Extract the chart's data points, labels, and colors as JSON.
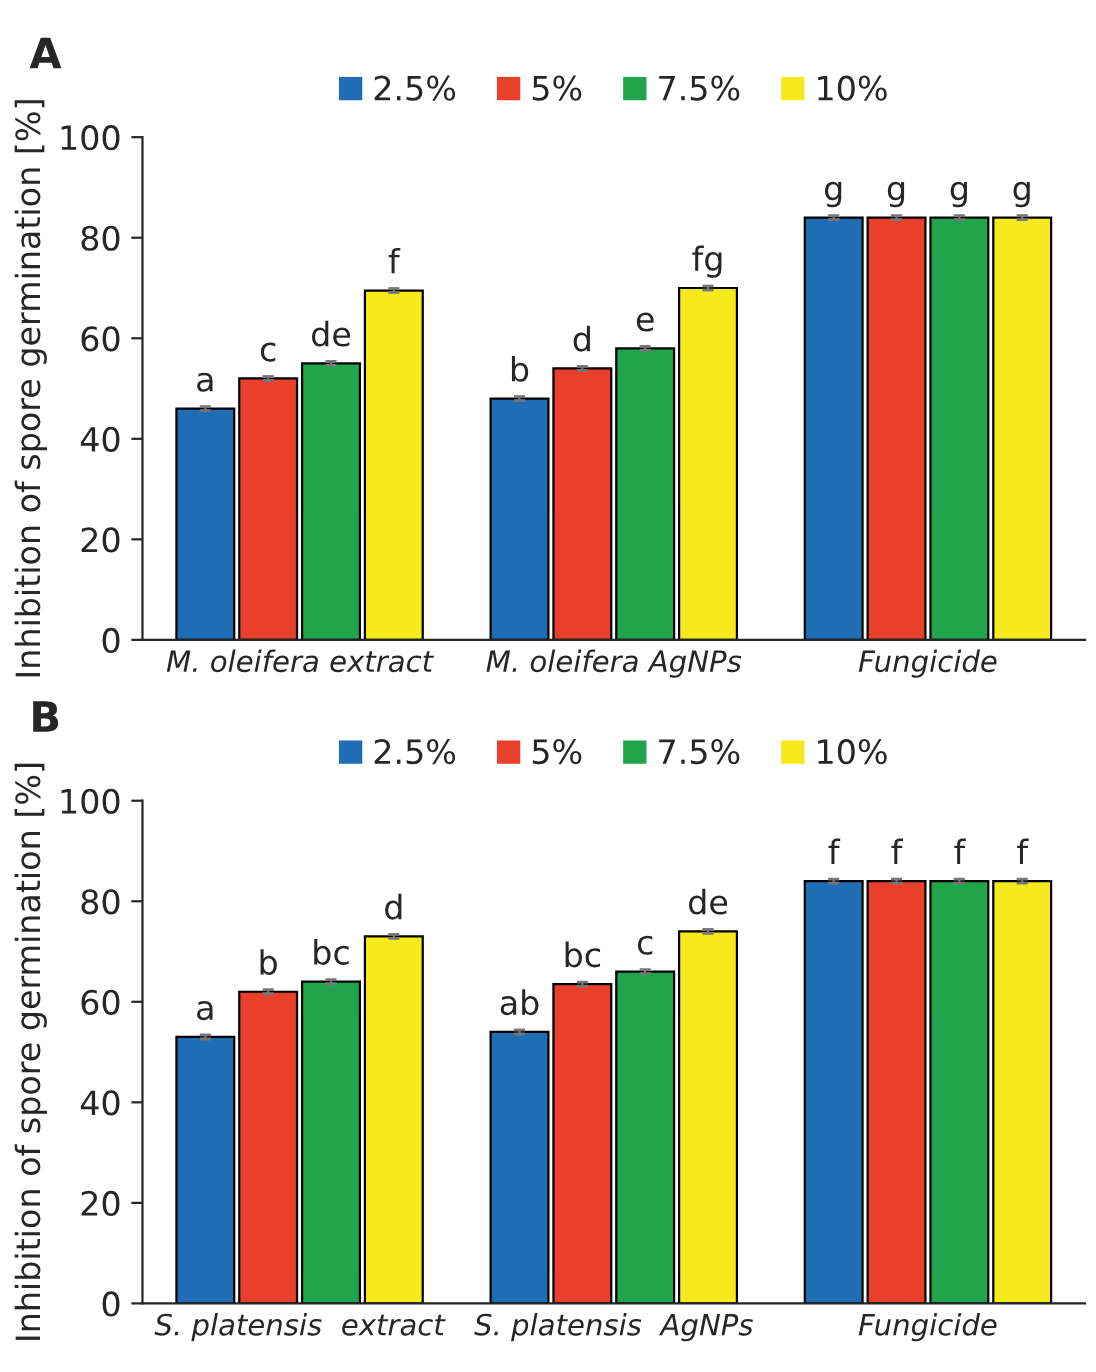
{
  "chart_data": [
    {
      "type": "bar",
      "title": "A",
      "ylabel": "Inhibition of spore germination [%]",
      "categories": [
        "M. oleifera extract",
        "M. oleifera AgNPs",
        "Fungicide"
      ],
      "ylim": [
        0,
        100
      ],
      "yticks": [
        0,
        20,
        40,
        60,
        80,
        100
      ],
      "legend": "top",
      "grid": false,
      "series": [
        {
          "name": "2.5%",
          "color": "#1f6db5",
          "values": [
            46,
            48,
            84
          ],
          "errors": [
            0.4,
            0.4,
            0.4
          ],
          "value_labels": [
            "a",
            "b",
            "g"
          ]
        },
        {
          "name": "5%",
          "color": "#e8402a",
          "values": [
            52,
            54,
            84
          ],
          "errors": [
            0.4,
            0.4,
            0.4
          ],
          "value_labels": [
            "c",
            "d",
            "g"
          ]
        },
        {
          "name": "7.5%",
          "color": "#20a44c",
          "values": [
            55,
            58,
            84
          ],
          "errors": [
            0.4,
            0.4,
            0.4
          ],
          "value_labels": [
            "de",
            "e",
            "g"
          ]
        },
        {
          "name": "10%",
          "color": "#f6ea1c",
          "values": [
            69.5,
            70,
            84
          ],
          "errors": [
            0.4,
            0.4,
            0.4
          ],
          "value_labels": [
            "f",
            "fg",
            "g"
          ]
        }
      ]
    },
    {
      "type": "bar",
      "title": "B",
      "ylabel": "Inhibition of spore germination [%]",
      "categories": [
        "S. platensis  extract",
        "S. platensis  AgNPs",
        "Fungicide"
      ],
      "ylim": [
        0,
        100
      ],
      "yticks": [
        0,
        20,
        40,
        60,
        80,
        100
      ],
      "legend": "top",
      "grid": false,
      "series": [
        {
          "name": "2.5%",
          "color": "#1f6db5",
          "values": [
            53,
            54,
            84
          ],
          "errors": [
            0.4,
            0.4,
            0.4
          ],
          "value_labels": [
            "a",
            "ab",
            "f"
          ]
        },
        {
          "name": "5%",
          "color": "#e8402a",
          "values": [
            62,
            63.5,
            84
          ],
          "errors": [
            0.4,
            0.4,
            0.4
          ],
          "value_labels": [
            "b",
            "bc",
            "f"
          ]
        },
        {
          "name": "7.5%",
          "color": "#20a44c",
          "values": [
            64,
            66,
            84
          ],
          "errors": [
            0.4,
            0.4,
            0.4
          ],
          "value_labels": [
            "bc",
            "c",
            "f"
          ]
        },
        {
          "name": "10%",
          "color": "#f6ea1c",
          "values": [
            73,
            74,
            84
          ],
          "errors": [
            0.4,
            0.4,
            0.4
          ],
          "value_labels": [
            "d",
            "de",
            "f"
          ]
        }
      ]
    }
  ]
}
